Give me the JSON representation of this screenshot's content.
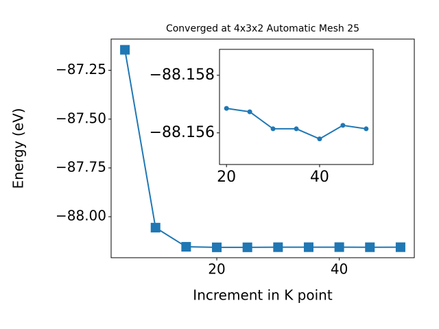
{
  "chart_data": [
    {
      "type": "line",
      "title": "Converged at 4x3x2 Automatic Mesh 25",
      "xlabel": "Increment in K point",
      "ylabel": "Energy (eV)",
      "x": [
        5,
        10,
        15,
        20,
        25,
        30,
        35,
        40,
        45,
        50
      ],
      "series": [
        {
          "color": "#1f77b4",
          "marker": "square",
          "values": [
            -87.145,
            -88.056,
            -88.154,
            -88.1568,
            -88.1567,
            -88.1561,
            -88.1561,
            -88.1558,
            -88.1563,
            -88.1561
          ]
        }
      ],
      "xlim": [
        2.75,
        52.25
      ],
      "ylim": [
        -88.21,
        -87.09
      ],
      "xticks": [
        20,
        40
      ],
      "yticks": [
        {
          "value": -87.25,
          "label": "−87.25"
        },
        {
          "value": -87.5,
          "label": "−87.50"
        },
        {
          "value": -87.75,
          "label": "−87.75"
        },
        {
          "value": -88.0,
          "label": "−88.00"
        }
      ]
    },
    {
      "type": "line",
      "x": [
        20,
        25,
        30,
        35,
        40,
        45,
        50
      ],
      "series": [
        {
          "color": "#1f77b4",
          "marker": "circle",
          "values": [
            -88.15685,
            -88.15673,
            -88.15614,
            -88.15614,
            -88.15579,
            -88.15626,
            -88.15614
          ]
        }
      ],
      "xlim": [
        18.5,
        51.5
      ],
      "ylim": [
        -88.1549,
        -88.1589
      ],
      "xticks": [
        20,
        40
      ],
      "yticks": [
        {
          "value": -88.158,
          "label": "−88.158"
        },
        {
          "value": -88.156,
          "label": "−88.156"
        }
      ]
    }
  ]
}
